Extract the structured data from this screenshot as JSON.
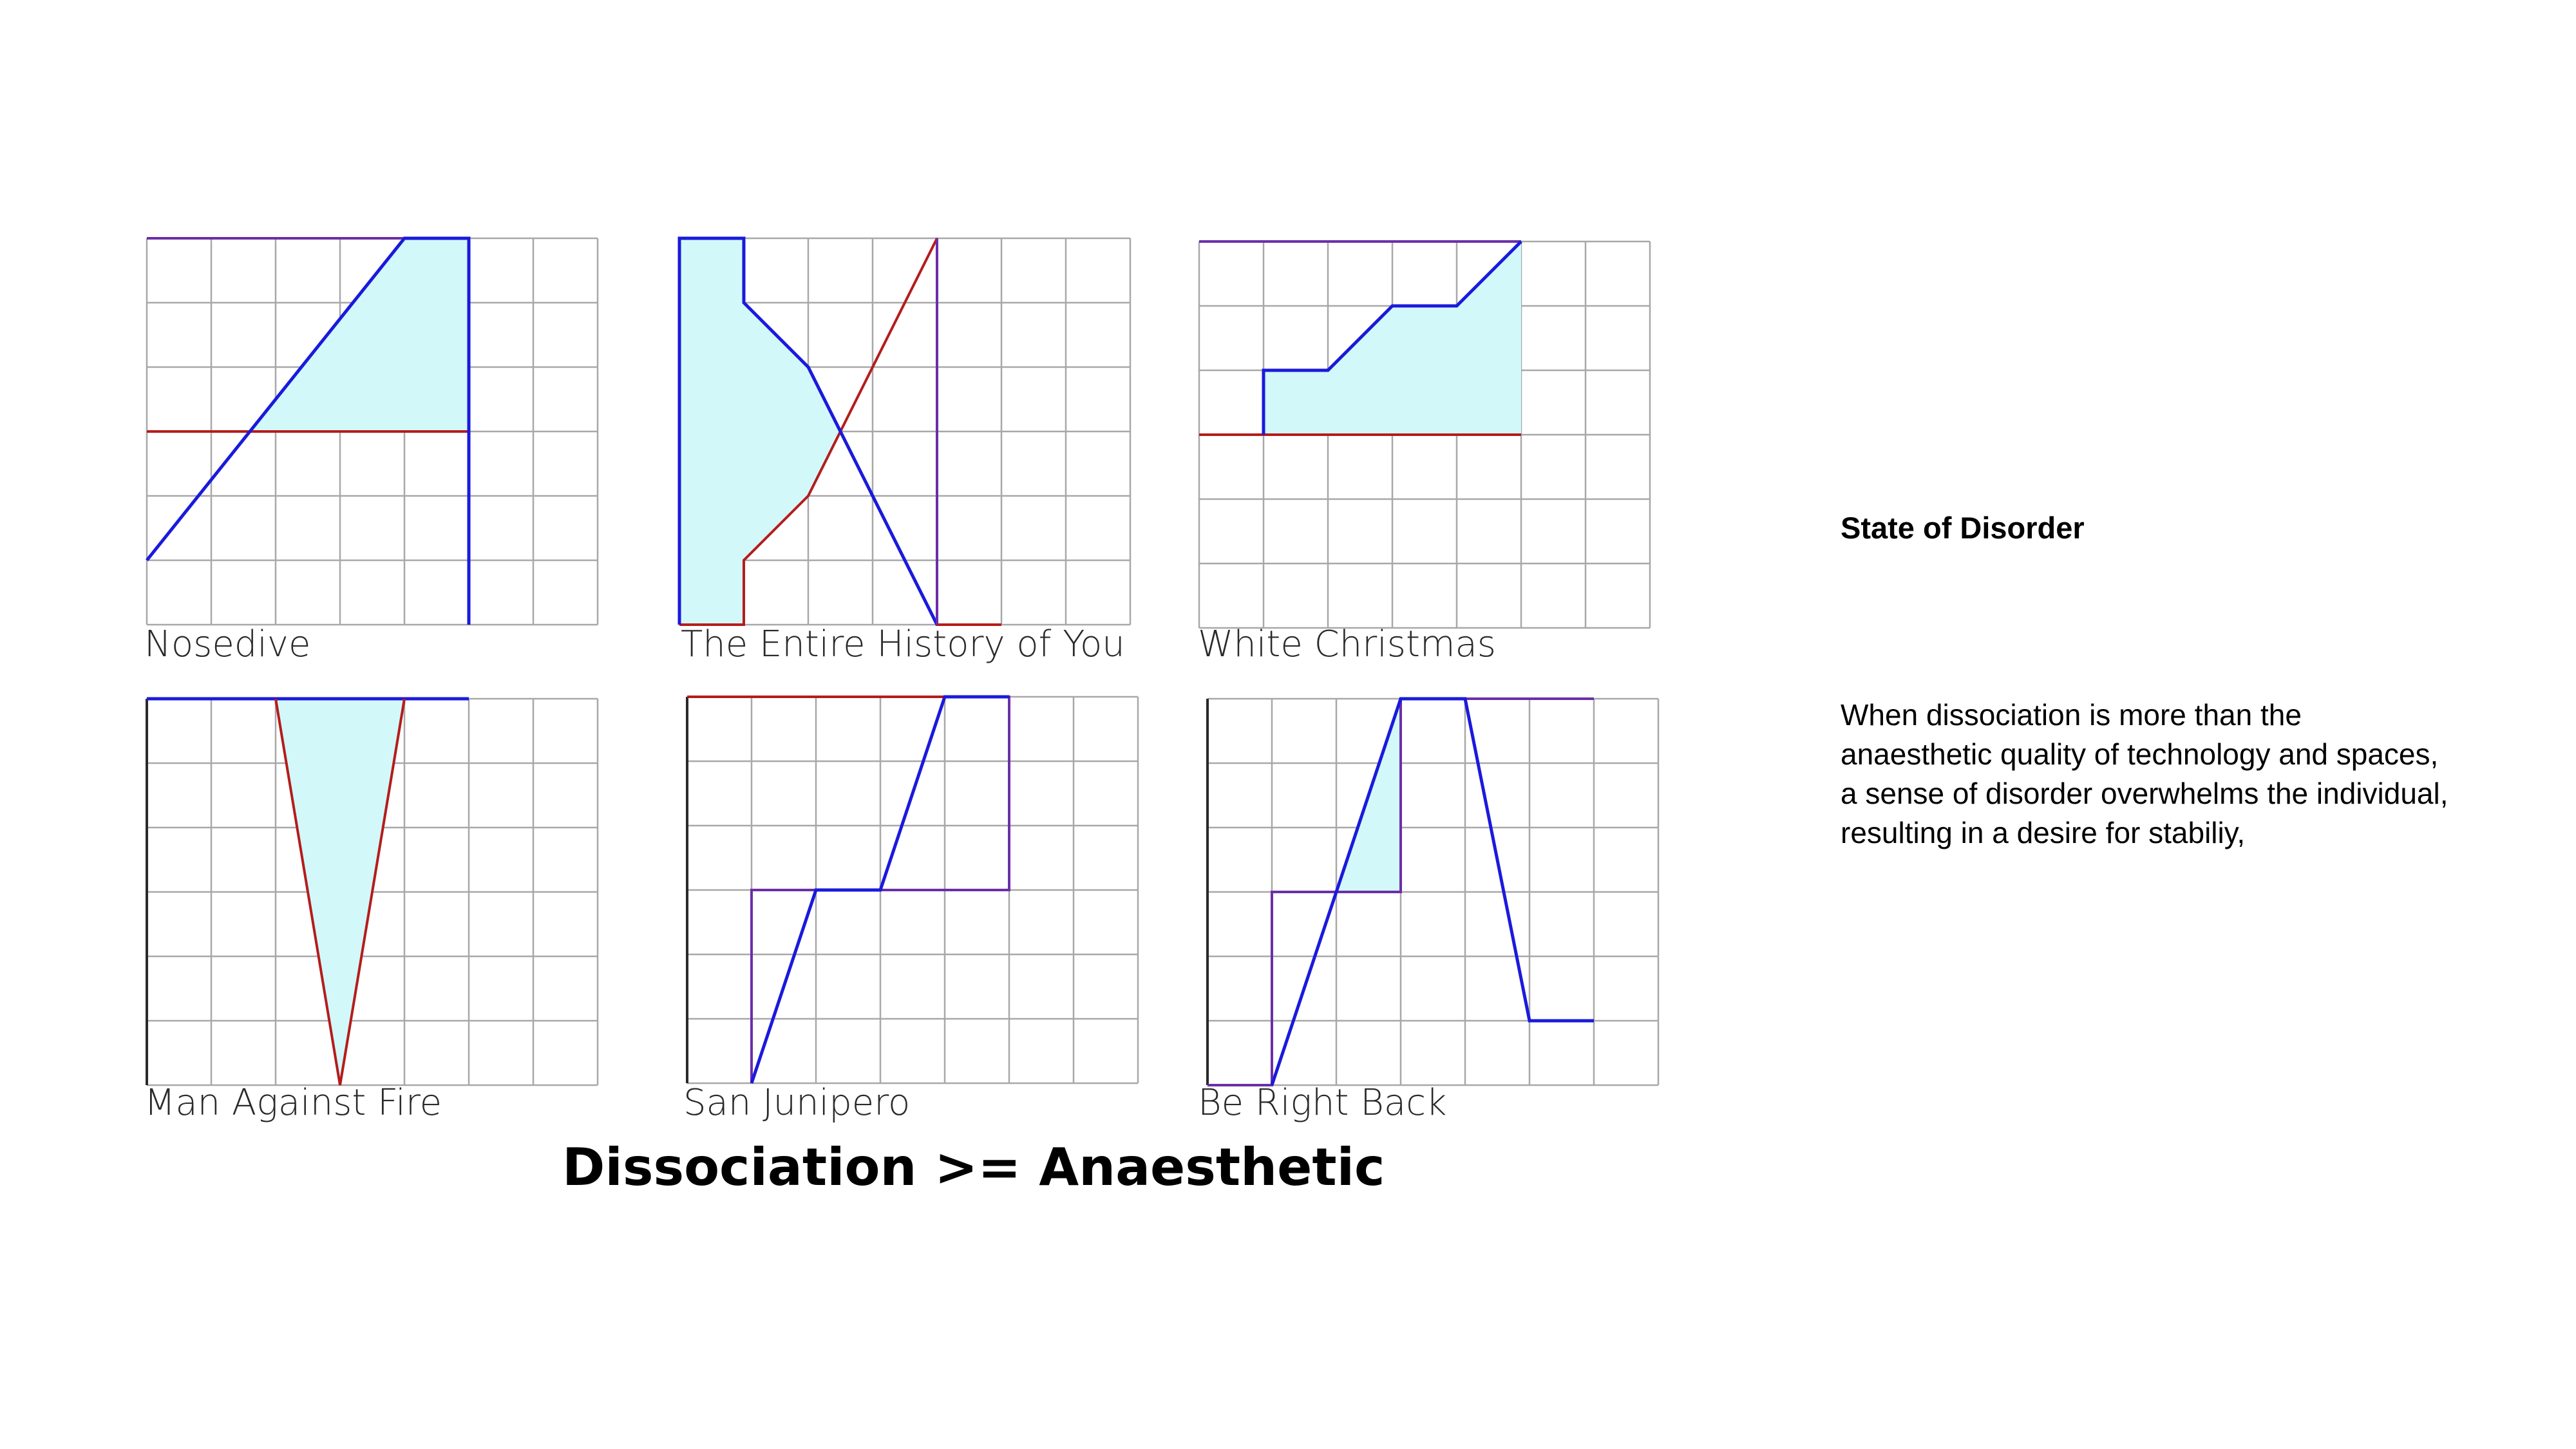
{
  "colors": {
    "grid": "#a8a8a8",
    "fill": "#d2f8fa",
    "blue": "#1a1adc",
    "red": "#b51c1c",
    "purple": "#6b2fa8"
  },
  "panels": [
    {
      "caption": "Nosedive"
    },
    {
      "caption": "The Entire History of You"
    },
    {
      "caption": "White Christmas"
    },
    {
      "caption": "Man Against Fire"
    },
    {
      "caption": "San Junipero"
    },
    {
      "caption": "Be Right Back"
    }
  ],
  "main_title": "Dissociation >= Anaesthetic",
  "side": {
    "heading": "State of Disorder",
    "body_lines": [
      "When dissociation is more than the",
      "anaesthetic quality of technology and spaces,",
      "a sense of disorder overwhelms the individual,",
      "resulting in a desire for stabiliy,"
    ]
  }
}
